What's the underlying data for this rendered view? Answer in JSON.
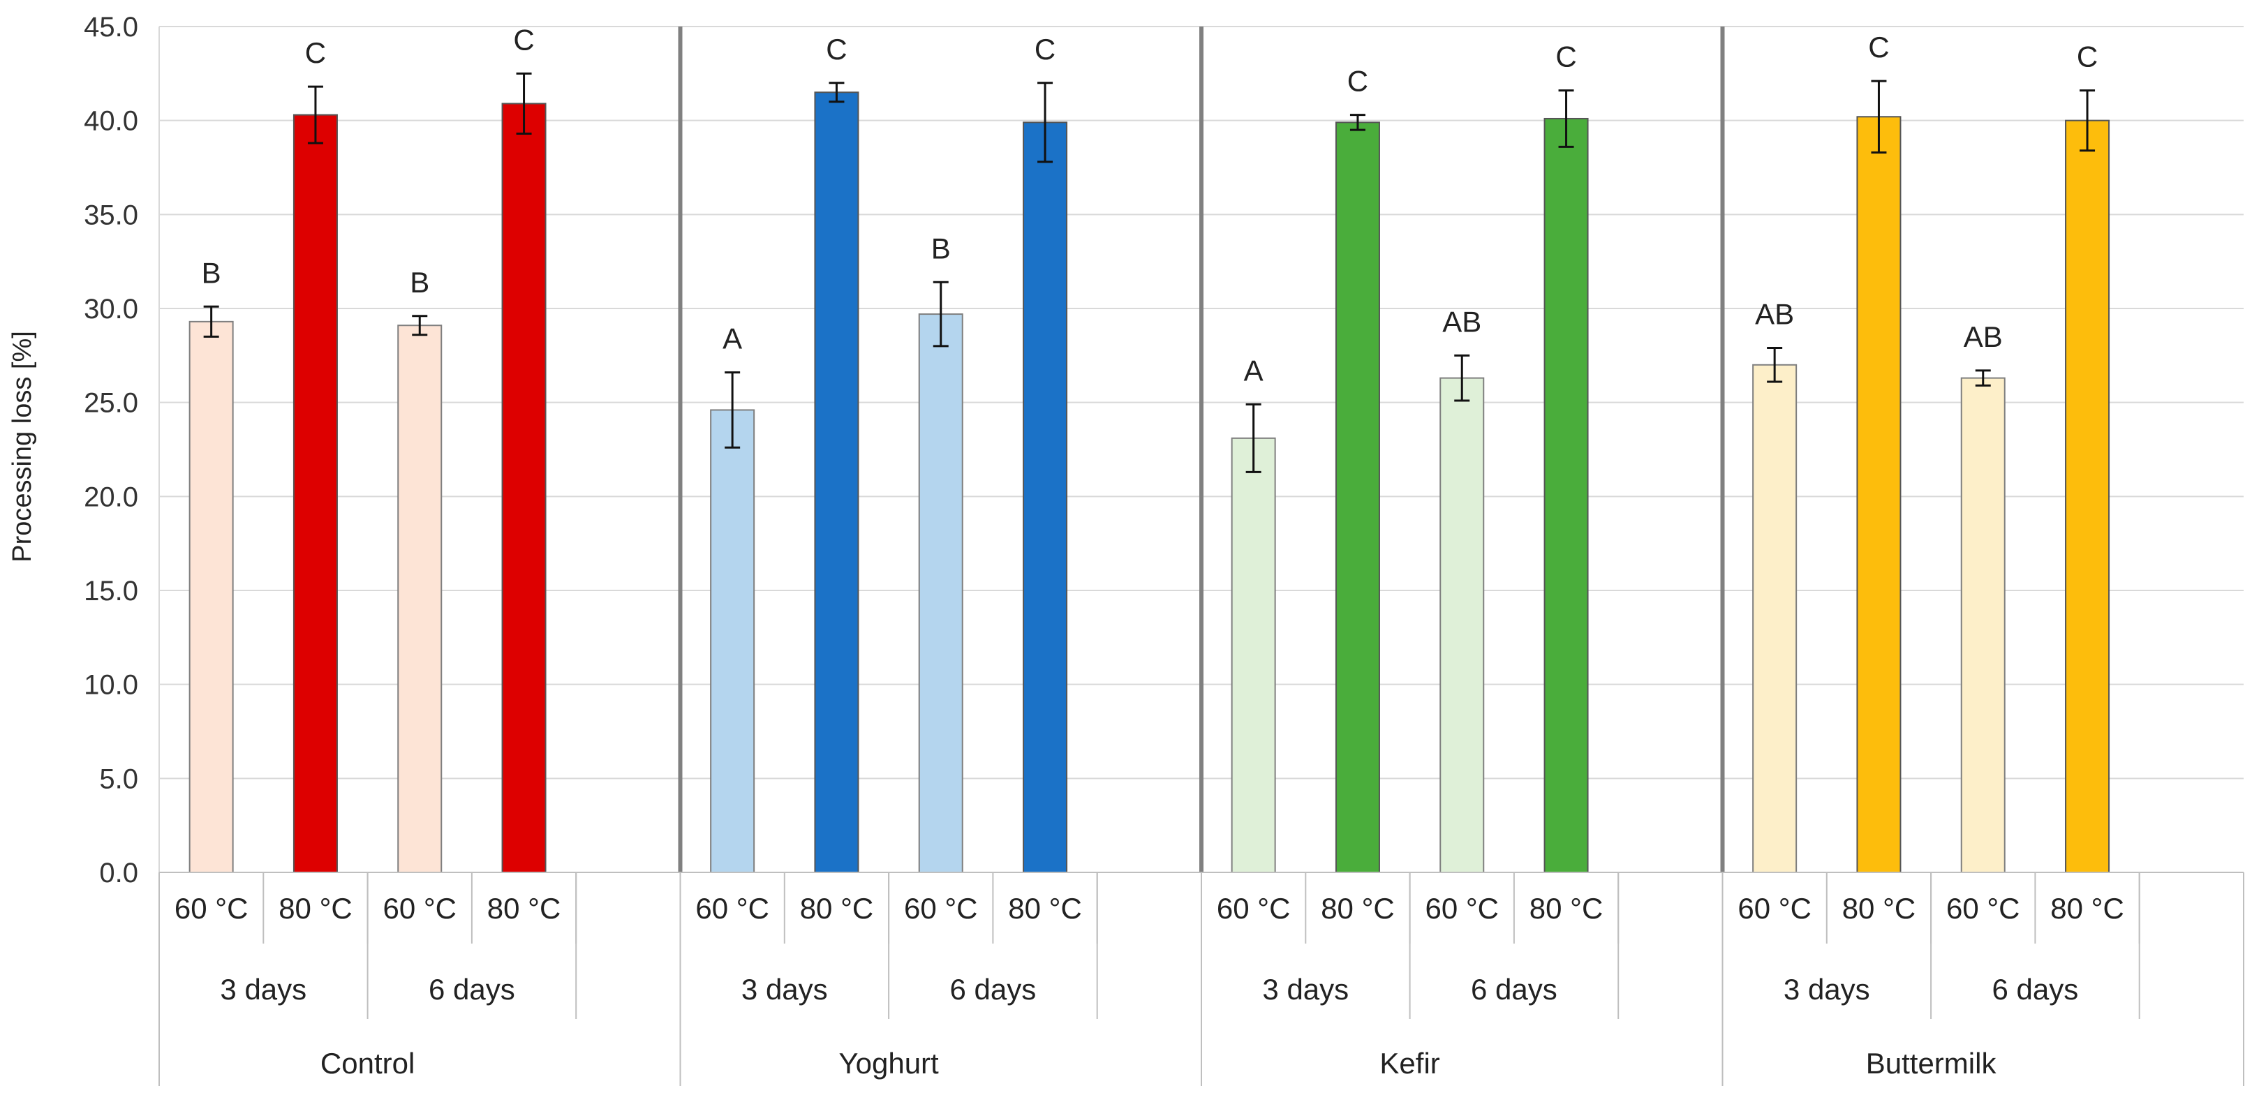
{
  "chart_data": {
    "type": "bar",
    "ylabel": "Processing loss [%]",
    "ylim": [
      0,
      45
    ],
    "y_ticks": [
      "0.0",
      "5.0",
      "10.0",
      "15.0",
      "20.0",
      "25.0",
      "30.0",
      "35.0",
      "40.0",
      "45.0"
    ],
    "grid": true,
    "groups": [
      {
        "name": "Control",
        "colors": {
          "light": "#fde4d6",
          "dark": "#dd0000"
        },
        "durations": [
          {
            "label": "3 days",
            "bars": [
              {
                "temp": "60 °C",
                "value": 29.3,
                "error": 0.8,
                "letter": "B"
              },
              {
                "temp": "80 °C",
                "value": 40.3,
                "error": 1.5,
                "letter": "C"
              }
            ]
          },
          {
            "label": "6 days",
            "bars": [
              {
                "temp": "60 °C",
                "value": 29.1,
                "error": 0.5,
                "letter": "B"
              },
              {
                "temp": "80 °C",
                "value": 40.9,
                "error": 1.6,
                "letter": "C"
              }
            ]
          }
        ]
      },
      {
        "name": "Yoghurt",
        "colors": {
          "light": "#b4d5ee",
          "dark": "#1b72c7"
        },
        "durations": [
          {
            "label": "3 days",
            "bars": [
              {
                "temp": "60 °C",
                "value": 24.6,
                "error": 2.0,
                "letter": "A"
              },
              {
                "temp": "80 °C",
                "value": 41.5,
                "error": 0.5,
                "letter": "C"
              }
            ]
          },
          {
            "label": "6 days",
            "bars": [
              {
                "temp": "60 °C",
                "value": 29.7,
                "error": 1.7,
                "letter": "B"
              },
              {
                "temp": "80 °C",
                "value": 39.9,
                "error": 2.1,
                "letter": "C"
              }
            ]
          }
        ]
      },
      {
        "name": "Kefir",
        "colors": {
          "light": "#dff0d8",
          "dark": "#4aad3b"
        },
        "durations": [
          {
            "label": "3 days",
            "bars": [
              {
                "temp": "60 °C",
                "value": 23.1,
                "error": 1.8,
                "letter": "A"
              },
              {
                "temp": "80 °C",
                "value": 39.9,
                "error": 0.4,
                "letter": "C"
              }
            ]
          },
          {
            "label": "6 days",
            "bars": [
              {
                "temp": "60 °C",
                "value": 26.3,
                "error": 1.2,
                "letter": "AB"
              },
              {
                "temp": "80 °C",
                "value": 40.1,
                "error": 1.5,
                "letter": "C"
              }
            ]
          }
        ]
      },
      {
        "name": "Buttermilk",
        "colors": {
          "light": "#fdefc9",
          "dark": "#fdbd0c"
        },
        "durations": [
          {
            "label": "3 days",
            "bars": [
              {
                "temp": "60 °C",
                "value": 27.0,
                "error": 0.9,
                "letter": "AB"
              },
              {
                "temp": "80 °C",
                "value": 40.2,
                "error": 1.9,
                "letter": "C"
              }
            ]
          },
          {
            "label": "6 days",
            "bars": [
              {
                "temp": "60 °C",
                "value": 26.3,
                "error": 0.4,
                "letter": "AB"
              },
              {
                "temp": "80 °C",
                "value": 40.0,
                "error": 1.6,
                "letter": "C"
              }
            ]
          }
        ]
      }
    ]
  }
}
